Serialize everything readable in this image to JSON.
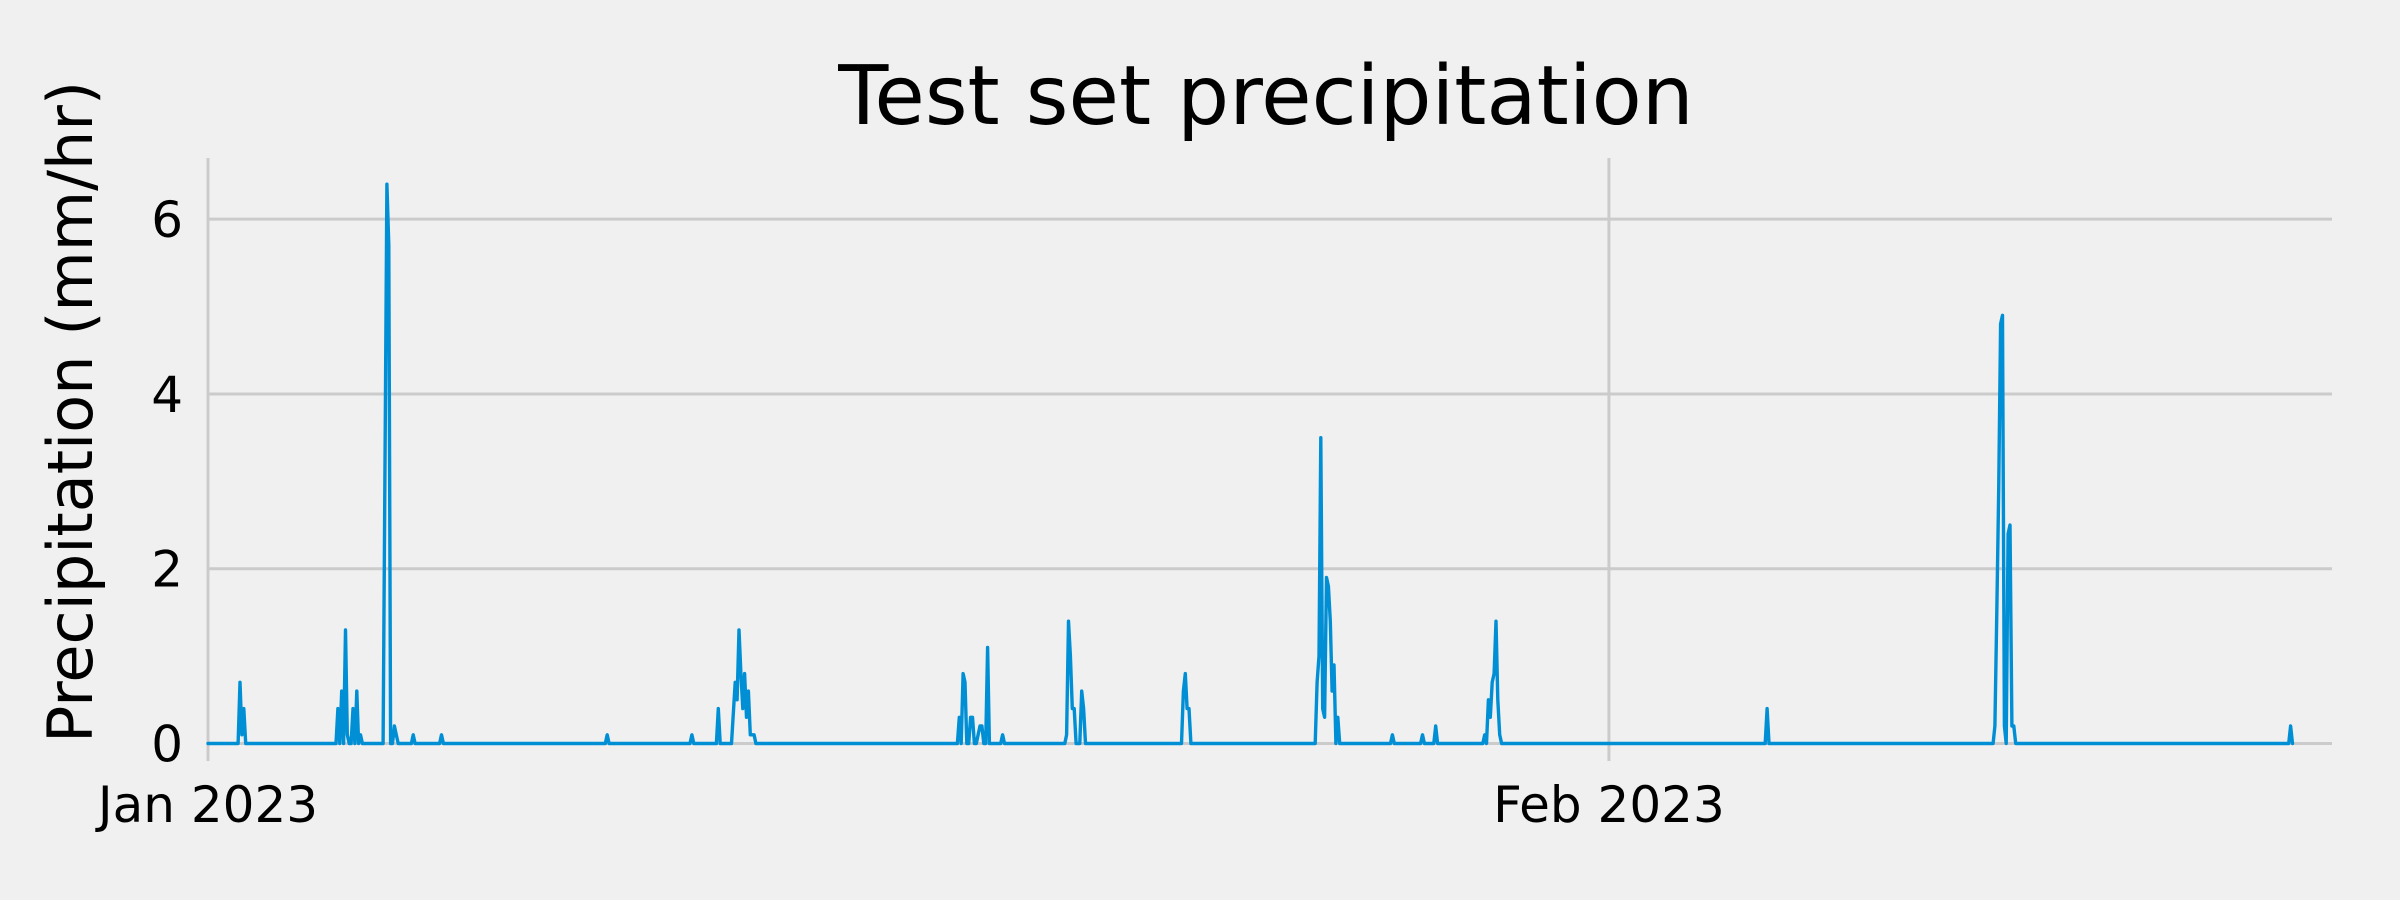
{
  "chart_data": {
    "type": "line",
    "title": "Test set precipitation",
    "xlabel": "",
    "ylabel": "Precipitation (mm/hr)",
    "x_axis_type": "date",
    "xlim": [
      "2023-01-01",
      "2023-02-17"
    ],
    "ylim": [
      -0.2,
      6.7
    ],
    "grid": true,
    "legend": "none",
    "colors": {
      "background": "#f0f0f0",
      "series": "#008fd5",
      "grid": "#cbcbcb"
    },
    "x_ticks": [
      {
        "value": "2023-01-01",
        "label": "Jan 2023"
      },
      {
        "value": "2023-02-01",
        "label": "Feb 2023"
      }
    ],
    "y_ticks": [
      {
        "value": 0,
        "label": "0"
      },
      {
        "value": 2,
        "label": "2"
      },
      {
        "value": 4,
        "label": "4"
      },
      {
        "value": 6,
        "label": "6"
      }
    ],
    "series": [
      {
        "x": [
          "2023-01-01 00:00",
          "2023-01-01 16:00",
          "2023-01-01 17:00",
          "2023-01-01 18:00",
          "2023-01-01 19:00",
          "2023-01-01 20:00",
          "2023-01-01 21:00",
          "2023-01-01 22:00",
          "2023-01-03 20:00",
          "2023-01-03 21:00",
          "2023-01-03 22:00",
          "2023-01-03 23:00",
          "2023-01-04 00:00",
          "2023-01-04 01:00",
          "2023-01-04 02:00",
          "2023-01-04 03:00",
          "2023-01-04 04:00",
          "2023-01-04 05:00",
          "2023-01-04 06:00",
          "2023-01-04 07:00",
          "2023-01-04 08:00",
          "2023-01-04 09:00",
          "2023-01-04 10:00",
          "2023-01-04 11:00",
          "2023-01-04 21:00",
          "2023-01-04 22:00",
          "2023-01-04 23:00",
          "2023-01-05 00:00",
          "2023-01-05 01:00",
          "2023-01-05 02:00",
          "2023-01-05 03:00",
          "2023-01-05 04:00",
          "2023-01-05 05:00",
          "2023-01-05 06:00",
          "2023-01-05 07:00",
          "2023-01-05 12:00",
          "2023-01-05 13:00",
          "2023-01-05 14:00",
          "2023-01-06 03:00",
          "2023-01-06 04:00",
          "2023-01-06 05:00",
          "2023-01-09 19:00",
          "2023-01-09 20:00",
          "2023-01-09 21:00",
          "2023-01-11 16:00",
          "2023-01-11 17:00",
          "2023-01-11 18:00",
          "2023-01-12 06:00",
          "2023-01-12 07:00",
          "2023-01-12 08:00",
          "2023-01-12 12:00",
          "2023-01-12 14:00",
          "2023-01-12 16:00",
          "2023-01-12 17:00",
          "2023-01-12 18:00",
          "2023-01-12 19:00",
          "2023-01-12 20:00",
          "2023-01-12 21:00",
          "2023-01-12 22:00",
          "2023-01-12 23:00",
          "2023-01-13 00:00",
          "2023-01-13 01:00",
          "2023-01-13 02:00",
          "2023-01-13 03:00",
          "2023-01-13 04:00",
          "2023-01-17 14:00",
          "2023-01-17 15:00",
          "2023-01-17 16:00",
          "2023-01-17 17:00",
          "2023-01-17 18:00",
          "2023-01-17 19:00",
          "2023-01-17 20:00",
          "2023-01-17 21:00",
          "2023-01-17 22:00",
          "2023-01-17 23:00",
          "2023-01-18 00:00",
          "2023-01-18 01:00",
          "2023-01-18 02:00",
          "2023-01-18 03:00",
          "2023-01-18 04:00",
          "2023-01-18 05:00",
          "2023-01-18 06:00",
          "2023-01-18 07:00",
          "2023-01-18 08:00",
          "2023-01-18 13:00",
          "2023-01-18 14:00",
          "2023-01-18 15:00",
          "2023-01-19 23:00",
          "2023-01-20 00:00",
          "2023-01-20 01:00",
          "2023-01-20 02:00",
          "2023-01-20 03:00",
          "2023-01-20 04:00",
          "2023-01-20 05:00",
          "2023-01-20 06:00",
          "2023-01-20 07:00",
          "2023-01-20 08:00",
          "2023-01-20 09:00",
          "2023-01-20 10:00",
          "2023-01-22 13:00",
          "2023-01-22 14:00",
          "2023-01-22 15:00",
          "2023-01-22 16:00",
          "2023-01-22 17:00",
          "2023-01-22 18:00",
          "2023-01-22 19:00",
          "2023-01-25 12:00",
          "2023-01-25 13:00",
          "2023-01-25 14:00",
          "2023-01-25 15:00",
          "2023-01-25 16:00",
          "2023-01-25 17:00",
          "2023-01-25 18:00",
          "2023-01-25 19:00",
          "2023-01-25 20:00",
          "2023-01-25 21:00",
          "2023-01-25 22:00",
          "2023-01-25 23:00",
          "2023-01-26 00:00",
          "2023-01-26 01:00",
          "2023-01-26 02:00",
          "2023-01-26 03:00",
          "2023-01-26 04:00",
          "2023-01-27 04:00",
          "2023-01-27 05:00",
          "2023-01-27 06:00",
          "2023-01-27 20:00",
          "2023-01-27 21:00",
          "2023-01-27 22:00",
          "2023-01-28 03:00",
          "2023-01-28 04:00",
          "2023-01-28 05:00",
          "2023-01-29 05:00",
          "2023-01-29 06:00",
          "2023-01-29 07:00",
          "2023-01-29 08:00",
          "2023-01-29 09:00",
          "2023-01-29 10:00",
          "2023-01-29 11:00",
          "2023-01-29 12:00",
          "2023-01-29 13:00",
          "2023-01-29 14:00",
          "2023-01-29 15:00",
          "2023-02-04 11:00",
          "2023-02-04 12:00",
          "2023-02-04 13:00",
          "2023-02-09 12:00",
          "2023-02-09 13:00",
          "2023-02-09 14:00",
          "2023-02-09 15:00",
          "2023-02-09 16:00",
          "2023-02-09 17:00",
          "2023-02-09 18:00",
          "2023-02-09 19:00",
          "2023-02-09 20:00",
          "2023-02-09 21:00",
          "2023-02-09 22:00",
          "2023-02-09 23:00",
          "2023-02-10 00:00",
          "2023-02-16 01:00",
          "2023-02-16 02:00",
          "2023-02-16 03:00"
        ],
        "values": [
          0,
          0,
          0.7,
          0.1,
          0.4,
          0,
          0,
          0,
          0,
          0.4,
          0,
          0.6,
          0,
          1.3,
          0.1,
          0,
          0,
          0.4,
          0,
          0.6,
          0,
          0.1,
          0,
          0,
          0,
          3.2,
          6.4,
          5.7,
          0,
          0,
          0.2,
          0.1,
          0,
          0,
          0,
          0,
          0.1,
          0,
          0,
          0.1,
          0,
          0,
          0.1,
          0,
          0,
          0.1,
          0,
          0,
          0.4,
          0,
          0,
          0,
          0.7,
          0.5,
          1.3,
          0.8,
          0.4,
          0.8,
          0.3,
          0.6,
          0.1,
          0.1,
          0.1,
          0,
          0,
          0,
          0.3,
          0,
          0.8,
          0.7,
          0,
          0,
          0.3,
          0.3,
          0,
          0,
          0.1,
          0.2,
          0.2,
          0,
          0,
          1.1,
          0,
          0,
          0,
          0.1,
          0,
          0,
          0.1,
          1.4,
          1.0,
          0.4,
          0.4,
          0,
          0,
          0,
          0.6,
          0.4,
          0,
          0,
          0.6,
          0.8,
          0.4,
          0.4,
          0,
          0,
          0,
          0.7,
          1.0,
          3.5,
          0.4,
          0.3,
          1.9,
          1.8,
          1.4,
          0.6,
          0.9,
          0,
          0.3,
          0,
          0,
          0,
          0,
          0,
          0.1,
          0,
          0,
          0.1,
          0,
          0,
          0.2,
          0,
          0,
          0.1,
          0,
          0.5,
          0.3,
          0.7,
          0.8,
          1.4,
          0.5,
          0.1,
          0,
          0,
          0.4,
          0,
          0,
          0.2,
          1.5,
          2.9,
          4.8,
          4.9,
          0.2,
          0,
          2.4,
          2.5,
          0.2,
          0.2,
          0,
          0,
          0.2,
          0
        ],
        "color": "#008fd5"
      }
    ]
  }
}
